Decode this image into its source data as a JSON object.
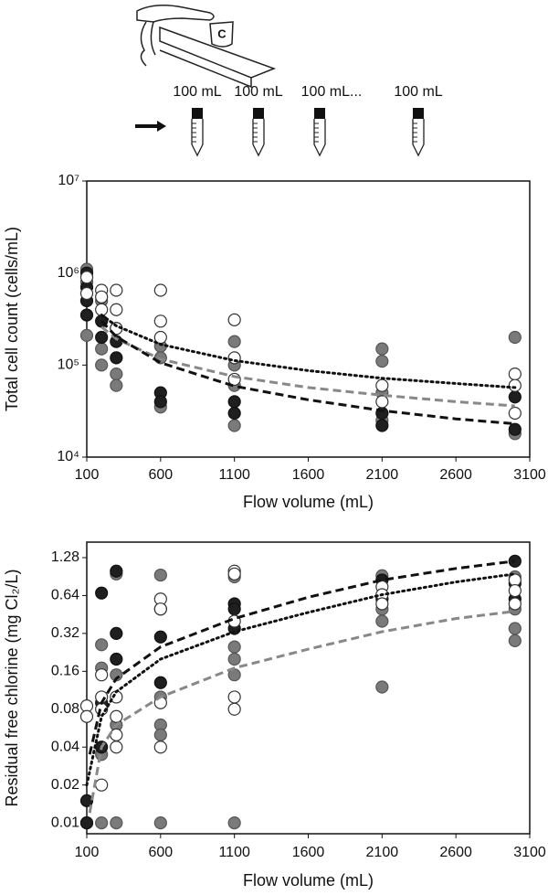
{
  "illustration": {
    "labels": [
      "100 mL",
      "100 mL",
      "100 mL...",
      "100 mL"
    ]
  },
  "chart_data": [
    {
      "type": "scatter",
      "ylabel": "Total cell count (cells/mL)",
      "xlabel": "Flow volume (mL)",
      "xlim": [
        100,
        3100
      ],
      "xticks": [
        100,
        600,
        1100,
        1600,
        2100,
        2600,
        3100
      ],
      "ylim": [
        10000,
        10000000
      ],
      "log_y": true,
      "yticks": [
        {
          "value": 10000,
          "label": "10⁴"
        },
        {
          "value": 100000,
          "label": "10⁵"
        },
        {
          "value": 1000000,
          "label": "10⁶"
        },
        {
          "value": 10000000,
          "label": "10⁷"
        }
      ],
      "series": [
        {
          "mode": "markers",
          "color": "#555555",
          "fill": "#7a7a7a",
          "x": [
            100,
            100,
            100,
            200,
            200,
            200,
            300,
            300,
            300,
            600,
            600,
            600,
            1100,
            1100,
            1100,
            1100,
            2100,
            2100,
            2100,
            2100,
            3000,
            3000
          ],
          "values": [
            1100000,
            210000,
            800000,
            500000,
            150000,
            100000,
            250000,
            80000,
            60000,
            160000,
            120000,
            35000,
            180000,
            100000,
            60000,
            22000,
            150000,
            110000,
            50000,
            25000,
            200000,
            18000
          ]
        },
        {
          "mode": "markers",
          "color": "#111111",
          "fill": "#1f1f1f",
          "x": [
            100,
            100,
            100,
            100,
            200,
            200,
            300,
            300,
            600,
            600,
            1100,
            1100,
            2100,
            2100,
            3000,
            3000
          ],
          "values": [
            1000000,
            700000,
            500000,
            350000,
            300000,
            200000,
            180000,
            120000,
            50000,
            40000,
            40000,
            30000,
            30000,
            22000,
            20000,
            45000
          ]
        },
        {
          "mode": "markers",
          "color": "#333333",
          "fill": "#ffffff",
          "x": [
            100,
            100,
            200,
            200,
            200,
            300,
            300,
            300,
            600,
            600,
            600,
            1100,
            1100,
            1100,
            2100,
            2100,
            3000,
            3000,
            3000
          ],
          "values": [
            900000,
            600000,
            650000,
            550000,
            400000,
            650000,
            400000,
            250000,
            650000,
            300000,
            200000,
            310000,
            120000,
            70000,
            60000,
            40000,
            80000,
            60000,
            30000
          ]
        },
        {
          "mode": "line",
          "dash": "dotted",
          "color": "#111111",
          "x": [
            200,
            300,
            600,
            1100,
            1600,
            2100,
            2600,
            3000
          ],
          "values": [
            350000,
            267000,
            168000,
            112000,
            87000,
            72000,
            63000,
            57000
          ]
        },
        {
          "mode": "line",
          "dash": "dashed",
          "color": "#888888",
          "x": [
            200,
            300,
            600,
            1100,
            1600,
            2100,
            2600,
            3000
          ],
          "values": [
            260000,
            193000,
            116000,
            75000,
            57000,
            47000,
            40000,
            36000
          ]
        },
        {
          "mode": "line",
          "dash": "dashed",
          "color": "#111111",
          "x": [
            200,
            300,
            600,
            1100,
            1600,
            2100,
            2600,
            3000
          ],
          "values": [
            300000,
            204000,
            106000,
            59000,
            42000,
            32000,
            26000,
            23000
          ]
        }
      ]
    },
    {
      "type": "scatter",
      "ylabel": "Residual free chlorine (mg Cl₂/L)",
      "xlabel": "Flow volume (mL)",
      "xlim": [
        100,
        3100
      ],
      "xticks": [
        100,
        600,
        1100,
        1600,
        2100,
        2600,
        3100
      ],
      "ylim": [
        0.0082,
        1.7
      ],
      "log_y": true,
      "yticks": [
        0.01,
        0.02,
        0.04,
        0.08,
        0.16,
        0.32,
        0.64,
        1.28
      ],
      "series": [
        {
          "mode": "markers",
          "color": "#555555",
          "fill": "#7a7a7a",
          "x": [
            100,
            100,
            200,
            200,
            200,
            200,
            300,
            300,
            300,
            300,
            600,
            600,
            600,
            600,
            600,
            1100,
            1100,
            1100,
            1100,
            1100,
            2100,
            2100,
            2100,
            2100,
            3000,
            3000,
            3000,
            3000
          ],
          "values": [
            0.01,
            0.01,
            0.26,
            0.17,
            0.035,
            0.01,
            0.95,
            0.15,
            0.06,
            0.01,
            0.93,
            0.1,
            0.06,
            0.05,
            0.01,
            0.9,
            0.25,
            0.2,
            0.15,
            0.01,
            0.92,
            0.5,
            0.4,
            0.12,
            0.9,
            0.5,
            0.35,
            0.28
          ]
        },
        {
          "mode": "markers",
          "color": "#111111",
          "fill": "#1f1f1f",
          "x": [
            100,
            100,
            200,
            200,
            200,
            300,
            300,
            300,
            600,
            600,
            600,
            1100,
            1100,
            1100,
            2100,
            2100,
            3000,
            3000,
            3000
          ],
          "values": [
            0.01,
            0.015,
            0.67,
            0.09,
            0.04,
            1.0,
            0.32,
            0.2,
            0.5,
            0.3,
            0.13,
            0.55,
            0.5,
            0.35,
            0.85,
            0.6,
            1.2,
            0.8,
            0.6
          ]
        },
        {
          "mode": "markers",
          "color": "#333333",
          "fill": "#ffffff",
          "x": [
            100,
            100,
            200,
            200,
            200,
            200,
            300,
            300,
            300,
            300,
            600,
            600,
            600,
            600,
            1100,
            1100,
            1100,
            1100,
            1100,
            2100,
            2100,
            2100,
            3000,
            3000,
            3000
          ],
          "values": [
            0.085,
            0.07,
            0.15,
            0.1,
            0.08,
            0.02,
            0.1,
            0.07,
            0.05,
            0.04,
            0.6,
            0.5,
            0.09,
            0.04,
            1.0,
            0.95,
            0.4,
            0.1,
            0.08,
            0.75,
            0.65,
            0.55,
            0.85,
            0.7,
            0.55
          ]
        },
        {
          "mode": "line",
          "dash": "dotted",
          "color": "#111111",
          "x": [
            100,
            200,
            300,
            600,
            1100,
            1600,
            2100,
            2600,
            3000
          ],
          "values": [
            0.02,
            0.07,
            0.11,
            0.2,
            0.33,
            0.47,
            0.65,
            0.82,
            0.95
          ]
        },
        {
          "mode": "line",
          "dash": "dashed",
          "color": "#888888",
          "x": [
            120,
            200,
            300,
            600,
            1100,
            1600,
            2100,
            2600,
            3000
          ],
          "values": [
            0.012,
            0.04,
            0.06,
            0.1,
            0.17,
            0.24,
            0.33,
            0.42,
            0.48
          ]
        },
        {
          "mode": "line",
          "dash": "dashed",
          "color": "#111111",
          "x": [
            120,
            200,
            300,
            600,
            1100,
            1600,
            2100,
            2600,
            3000
          ],
          "values": [
            0.035,
            0.09,
            0.14,
            0.25,
            0.42,
            0.62,
            0.85,
            1.05,
            1.2
          ]
        }
      ]
    }
  ]
}
